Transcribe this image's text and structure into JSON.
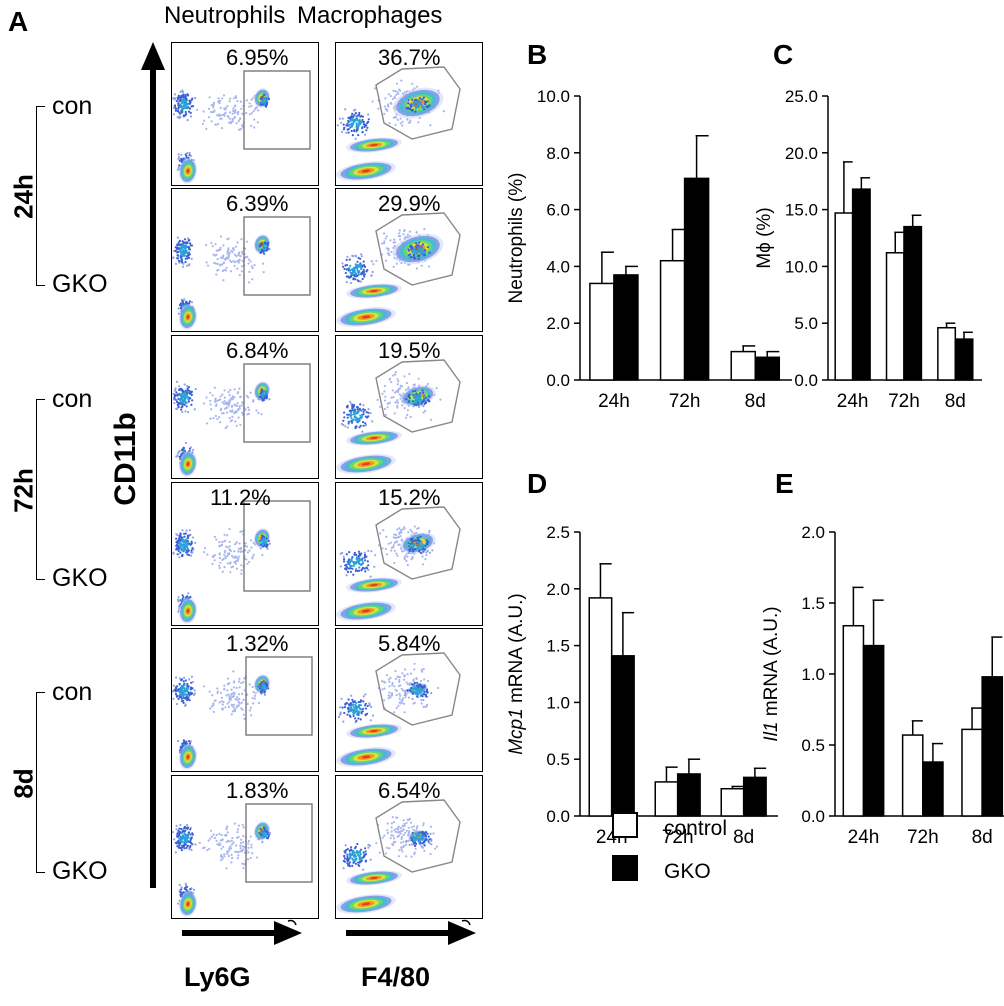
{
  "panel_a": {
    "letter": "A",
    "col_titles": [
      "Neutrophils",
      "Macrophages"
    ],
    "groups": [
      {
        "time": "24h",
        "rows": [
          "con",
          "GKO"
        ]
      },
      {
        "time": "72h",
        "rows": [
          "con",
          "GKO"
        ]
      },
      {
        "time": "8d",
        "rows": [
          "con",
          "GKO"
        ]
      }
    ],
    "y_axis_label": "CD11b",
    "x_axis_labels": [
      "Ly6G",
      "F4/80"
    ],
    "neutrophil_pcts": [
      "6.95%",
      "6.39%",
      "6.84%",
      "11.2%",
      "1.32%",
      "1.83%"
    ],
    "macrophage_pcts": [
      "36.7%",
      "29.9%",
      "19.5%",
      "15.2%",
      "5.84%",
      "6.54%"
    ]
  },
  "colors": {
    "control": "#ffffff",
    "gko": "#000000",
    "axis": "#000000"
  },
  "legend": {
    "control": "control",
    "gko": "GKO"
  },
  "chart_data": [
    {
      "panel": "B",
      "type": "bar",
      "categories": [
        "24h",
        "72h",
        "8d"
      ],
      "ylabel": "Neutrophils (%)",
      "ylim": [
        0,
        10
      ],
      "yticks": [
        "0.0",
        "2.0",
        "4.0",
        "6.0",
        "8.0",
        "10.0"
      ],
      "series": [
        {
          "name": "control",
          "values": [
            3.4,
            4.2,
            1.0
          ],
          "errors": [
            1.1,
            1.1,
            0.2
          ]
        },
        {
          "name": "GKO",
          "values": [
            3.7,
            7.1,
            0.8
          ],
          "errors": [
            0.3,
            1.5,
            0.2
          ]
        }
      ]
    },
    {
      "panel": "C",
      "type": "bar",
      "categories": [
        "24h",
        "72h",
        "8d"
      ],
      "ylabel": "Mϕ (%)",
      "ylim": [
        0,
        25
      ],
      "yticks": [
        "0.0",
        "5.0",
        "10.0",
        "15.0",
        "20.0",
        "25.0"
      ],
      "series": [
        {
          "name": "control",
          "values": [
            14.7,
            11.2,
            4.6
          ],
          "errors": [
            4.5,
            1.8,
            0.4
          ]
        },
        {
          "name": "GKO",
          "values": [
            16.8,
            13.5,
            3.6
          ],
          "errors": [
            1.0,
            1.0,
            0.6
          ]
        }
      ]
    },
    {
      "panel": "D",
      "type": "bar",
      "categories": [
        "24h",
        "72h",
        "8d"
      ],
      "ylabel_italic": "Mcp1",
      "ylabel_rest": " mRNA (A.U.)",
      "ylim": [
        0,
        2.5
      ],
      "yticks": [
        "0.0",
        "0.5",
        "1.0",
        "1.5",
        "2.0",
        "2.5"
      ],
      "series": [
        {
          "name": "control",
          "values": [
            1.92,
            0.3,
            0.24
          ],
          "errors": [
            0.3,
            0.13,
            0.02
          ]
        },
        {
          "name": "GKO",
          "values": [
            1.41,
            0.37,
            0.34
          ],
          "errors": [
            0.38,
            0.13,
            0.08
          ]
        }
      ]
    },
    {
      "panel": "E",
      "type": "bar",
      "categories": [
        "24h",
        "72h",
        "8d"
      ],
      "ylabel_italic": "Il1",
      "ylabel_rest": " mRNA (A.U.)",
      "ylim": [
        0,
        2.0
      ],
      "yticks": [
        "0.0",
        "0.5",
        "1.0",
        "1.5",
        "2.0"
      ],
      "series": [
        {
          "name": "control",
          "values": [
            1.34,
            0.57,
            0.61
          ],
          "errors": [
            0.27,
            0.1,
            0.15
          ]
        },
        {
          "name": "GKO",
          "values": [
            1.2,
            0.38,
            0.98
          ],
          "errors": [
            0.32,
            0.13,
            0.28
          ]
        }
      ]
    }
  ]
}
